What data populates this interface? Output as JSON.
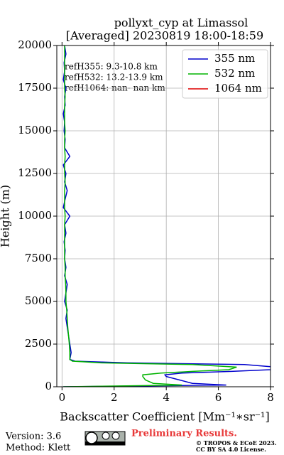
{
  "chart_data": {
    "type": "line",
    "title": "pollyxt_cyp at Limassol",
    "subtitle": "[Averaged] 20230819 18:00-18:59",
    "xlabel": "Backscatter Coefficient [Mm⁻¹∗sr⁻¹]",
    "ylabel": "Height (m)",
    "y": [
      0,
      100,
      200,
      400,
      600,
      700,
      800,
      900,
      1000,
      1150,
      1300,
      1400,
      1500,
      1600,
      2000,
      2500,
      3000,
      3500,
      4000,
      4500,
      5000,
      5500,
      6000,
      6500,
      7000,
      7500,
      8000,
      8500,
      9000,
      9500,
      10000,
      10500,
      11000,
      11500,
      12000,
      12500,
      13000,
      13500,
      14000,
      14500,
      15000,
      15500,
      16000,
      16500,
      17000,
      17500,
      18000,
      18500,
      19000,
      19500,
      20000
    ],
    "series": [
      {
        "name": "355 nm",
        "color": "#0000cc",
        "values": [
          0.05,
          6.3,
          5.0,
          4.5,
          4.0,
          3.95,
          4.6,
          6.5,
          8.0,
          8.2,
          7.0,
          2.5,
          0.5,
          0.3,
          0.35,
          0.3,
          0.25,
          0.2,
          0.15,
          0.2,
          0.1,
          0.15,
          0.2,
          0.1,
          0.15,
          0.1,
          0.12,
          0.08,
          0.15,
          0.1,
          0.3,
          0.05,
          0.12,
          0.2,
          0.1,
          0.15,
          0.05,
          0.3,
          0.1,
          0.12,
          0.08,
          0.1,
          0.05,
          0.12,
          0.1,
          0.15,
          0.05,
          0.1,
          0.08,
          0.15,
          0.1
        ]
      },
      {
        "name": "532 nm",
        "color": "#00b300",
        "values": [
          0.05,
          4.6,
          3.5,
          3.2,
          3.1,
          3.1,
          3.8,
          5.0,
          6.4,
          6.7,
          5.0,
          1.5,
          0.4,
          0.3,
          0.3,
          0.28,
          0.25,
          0.22,
          0.2,
          0.18,
          0.15,
          0.15,
          0.14,
          0.12,
          0.12,
          0.1,
          0.1,
          0.1,
          0.1,
          0.1,
          0.12,
          0.1,
          0.1,
          0.1,
          0.12,
          0.1,
          0.1,
          0.12,
          0.1,
          0.1,
          0.12,
          0.1,
          0.1,
          0.1,
          0.12,
          0.1,
          0.1,
          0.1,
          0.1,
          0.1,
          0.1
        ]
      },
      {
        "name": "1064 nm",
        "color": "#e00000",
        "values": [
          null,
          null,
          null,
          null,
          null,
          null,
          null,
          null,
          null,
          null,
          null,
          null,
          null,
          null,
          null,
          null,
          null,
          null,
          null,
          null,
          null,
          null,
          null,
          null,
          null,
          null,
          null,
          null,
          null,
          null,
          null,
          null,
          null,
          null,
          null,
          null,
          null,
          null,
          null,
          null,
          null,
          null,
          null,
          null,
          null,
          null,
          null,
          null,
          null,
          null,
          null
        ]
      }
    ],
    "xlim": [
      -0.2,
      8
    ],
    "xticks": [
      0,
      2,
      4,
      6,
      8
    ],
    "ylim": [
      0,
      20000
    ],
    "yticks": [
      0,
      2500,
      5000,
      7500,
      10000,
      12500,
      15000,
      17500,
      20000
    ],
    "grid": true,
    "legend": "upper-right",
    "annotations": [
      "refH355:  9.3-10.8 km",
      "refH532: 13.2-13.9 km",
      "refH1064:  nan- nan km"
    ],
    "footer": {
      "version": "Version: 3.6",
      "method": "Method: Klett",
      "preliminary": "Preliminary Results.",
      "copyright": "© TROPOS & ECoE 2023.",
      "license": "CC BY SA 4.0 License."
    }
  }
}
